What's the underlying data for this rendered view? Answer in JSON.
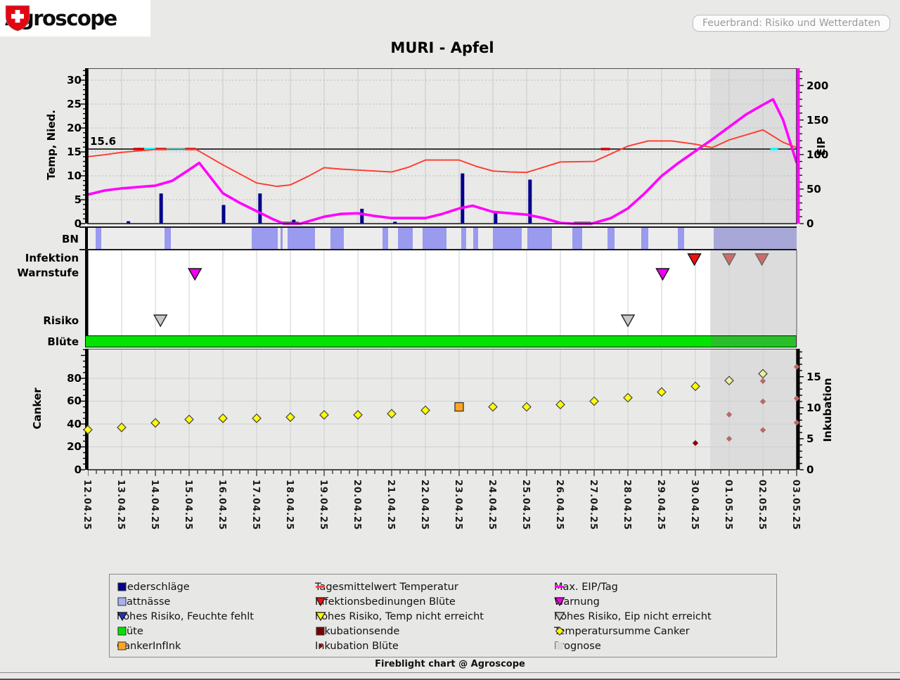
{
  "header": {
    "logo_text": "Agroscope",
    "badge": "Feuerbrand: Risiko und Wetterdaten"
  },
  "title": "MURI - Apfel",
  "footer": "Fireblight chart @ Agroscope",
  "row_labels": {
    "bn": "BN",
    "infektion": "Infektion",
    "warnstufe": "Warnstufe",
    "risiko": "Risiko",
    "bluete": "Blüte"
  },
  "colors": {
    "temperature": "#ff3a2e",
    "eip": "#ff00ff",
    "precipitation": "#00008b",
    "blattnaesse": "#9a9aee",
    "bn_prognose": "#a8a8d8",
    "bluete": "#00e400",
    "canker_point": "#ffff00",
    "forecast_yellow": "#ededA0",
    "canker_infink": "#ffa520",
    "inkubation": "#8b0000",
    "forecast_ink": "#b46a6a",
    "warnung": "#ee00ee",
    "infektion": "#ee1111",
    "forecast_red": "#d06a6a",
    "risiko": "#c8c8c8",
    "prognose": "#dcdcdc",
    "grid": "#c9c9c9",
    "dash_red": "#cc0000",
    "dash_cyan": "#00ffff",
    "zero_green": "#00c000"
  },
  "chart_data": {
    "type": "line",
    "x_dates": [
      "12.04.25",
      "13.04.25",
      "14.04.25",
      "15.04.25",
      "16.04.25",
      "17.04.25",
      "18.04.25",
      "19.04.25",
      "20.04.25",
      "21.04.25",
      "22.04.25",
      "23.04.25",
      "24.04.25",
      "25.04.25",
      "26.04.25",
      "27.04.25",
      "28.04.25",
      "29.04.25",
      "30.04.25",
      "01.05.25",
      "02.05.25",
      "03.05.25"
    ],
    "prognose_start_day": 18.44,
    "top": {
      "ylabel_left": "Temp, Nied.",
      "yticks_left": [
        0,
        5,
        10,
        15,
        20,
        25,
        30
      ],
      "ylim_left": [
        0,
        32.5
      ],
      "ylabel_right": "EIP",
      "yticks_right": [
        0,
        50,
        100,
        150,
        200
      ],
      "ylim_right": [
        0,
        225
      ],
      "threshold_temp": 15.6,
      "threshold_eip": 110,
      "series": {
        "temperature": [
          [
            0,
            14.0
          ],
          [
            0.5,
            14.4
          ],
          [
            1,
            14.9
          ],
          [
            1.5,
            15.2
          ],
          [
            2,
            15.5
          ],
          [
            2.2,
            15.55
          ],
          [
            3.2,
            15.55
          ],
          [
            4,
            12.3
          ],
          [
            5,
            8.5
          ],
          [
            5.6,
            7.8
          ],
          [
            6,
            8.1
          ],
          [
            6.5,
            9.8
          ],
          [
            7,
            11.7
          ],
          [
            7.5,
            11.4
          ],
          [
            8,
            11.2
          ],
          [
            8.5,
            11.0
          ],
          [
            9,
            10.8
          ],
          [
            9.5,
            11.8
          ],
          [
            10,
            13.3
          ],
          [
            11,
            13.3
          ],
          [
            11.5,
            12.0
          ],
          [
            12,
            11.0
          ],
          [
            12.5,
            10.8
          ],
          [
            13,
            10.7
          ],
          [
            13.5,
            11.8
          ],
          [
            14,
            12.9
          ],
          [
            15,
            13.0
          ],
          [
            16,
            16.2
          ],
          [
            16.6,
            17.3
          ],
          [
            17.3,
            17.3
          ],
          [
            18,
            16.6
          ],
          [
            18.5,
            15.9
          ],
          [
            19,
            17.5
          ],
          [
            20,
            19.6
          ],
          [
            20.6,
            17.0
          ],
          [
            21,
            15.9
          ]
        ],
        "max_eip": [
          [
            0,
            42
          ],
          [
            0.5,
            48
          ],
          [
            1,
            51
          ],
          [
            1.5,
            53
          ],
          [
            2,
            55
          ],
          [
            2.5,
            62
          ],
          [
            3,
            78
          ],
          [
            3.3,
            88
          ],
          [
            4,
            44
          ],
          [
            4.5,
            30
          ],
          [
            5,
            18
          ],
          [
            5.5,
            6
          ],
          [
            5.8,
            0
          ],
          [
            6.3,
            0
          ],
          [
            7,
            10
          ],
          [
            7.5,
            14
          ],
          [
            8,
            15
          ],
          [
            8.5,
            11
          ],
          [
            9,
            8
          ],
          [
            10,
            8
          ],
          [
            10.5,
            14
          ],
          [
            11,
            22
          ],
          [
            11.4,
            26
          ],
          [
            12,
            17
          ],
          [
            13,
            13
          ],
          [
            13.5,
            8
          ],
          [
            14,
            1
          ],
          [
            14.4,
            0
          ],
          [
            14.9,
            0
          ],
          [
            15,
            1
          ],
          [
            15.5,
            8
          ],
          [
            16,
            22
          ],
          [
            16.5,
            44
          ],
          [
            17,
            69
          ],
          [
            17.5,
            88
          ],
          [
            18,
            105
          ],
          [
            18.5,
            122
          ],
          [
            19,
            140
          ],
          [
            19.5,
            158
          ],
          [
            20,
            172
          ],
          [
            20.3,
            180
          ],
          [
            20.6,
            150
          ],
          [
            21,
            88
          ]
        ],
        "precipitation": [
          [
            1.2,
            0.5
          ],
          [
            2.17,
            6.3
          ],
          [
            4.02,
            3.9
          ],
          [
            5.1,
            6.3
          ],
          [
            6.1,
            0.8
          ],
          [
            8.12,
            3.1
          ],
          [
            9.1,
            0.4
          ],
          [
            11.1,
            10.5
          ],
          [
            12.08,
            2.2
          ],
          [
            13.1,
            9.2
          ]
        ]
      },
      "zero_eip_segments": [
        [
          5.75,
          6.25
        ],
        [
          14.4,
          14.9
        ]
      ],
      "threshold_dashes": {
        "red": [
          [
            1.35,
            1.67
          ],
          [
            2.0,
            2.33
          ],
          [
            2.88,
            3.2
          ],
          [
            15.2,
            15.47
          ]
        ],
        "cyan": [
          [
            1.67,
            2.0
          ],
          [
            2.33,
            2.88
          ],
          [
            20.22,
            20.45
          ]
        ]
      }
    },
    "blattnaesse_segments": [
      [
        0.23,
        0.4
      ],
      [
        2.28,
        2.46
      ],
      [
        4.86,
        5.62
      ],
      [
        5.7,
        5.78
      ],
      [
        5.91,
        6.74
      ],
      [
        7.18,
        7.58
      ],
      [
        8.73,
        8.89
      ],
      [
        9.19,
        9.62
      ],
      [
        9.92,
        10.63
      ],
      [
        11.06,
        11.21
      ],
      [
        11.42,
        11.57
      ],
      [
        12.0,
        12.86
      ],
      [
        13.01,
        13.74
      ],
      [
        14.36,
        14.65
      ],
      [
        15.39,
        15.6
      ],
      [
        16.39,
        16.6
      ],
      [
        17.47,
        17.66
      ]
    ],
    "blattnaesse_prognose_segment": [
      18.54,
      21.0
    ],
    "markers": {
      "infektion_bluete": [
        {
          "day": 17.97,
          "state": "beobachtet"
        },
        {
          "day": 19.0,
          "state": "prognose"
        },
        {
          "day": 19.97,
          "state": "prognose"
        }
      ],
      "warnung": [
        {
          "day": 3.17
        },
        {
          "day": 17.03
        }
      ],
      "risiko_eip_nicht_erreicht": [
        {
          "day": 2.15
        },
        {
          "day": 16.0
        }
      ]
    },
    "bluete_span_days": [
      0,
      21
    ],
    "bottom": {
      "ylabel_left": "Canker",
      "yticks_left": [
        0,
        20,
        40,
        60,
        80
      ],
      "ylim_left": [
        0,
        105.8
      ],
      "ylabel_right": "Inkubation",
      "yticks_right": [
        0,
        5,
        10,
        15
      ],
      "ylim_right": [
        0,
        19.5
      ],
      "series": {
        "temperatursumme_canker": [
          [
            0,
            35
          ],
          [
            1,
            37
          ],
          [
            2,
            41
          ],
          [
            3,
            44
          ],
          [
            4,
            45
          ],
          [
            5,
            45
          ],
          [
            6,
            46
          ],
          [
            7,
            48
          ],
          [
            8,
            48
          ],
          [
            9,
            49
          ],
          [
            10,
            52
          ],
          [
            12,
            55
          ],
          [
            13,
            55
          ],
          [
            14,
            57
          ],
          [
            15,
            60
          ],
          [
            16,
            63
          ],
          [
            17,
            68
          ],
          [
            18,
            73
          ],
          [
            19,
            78
          ],
          [
            20,
            84
          ]
        ],
        "canker_infink": [
          [
            11,
            55
          ]
        ],
        "inkubation_bluete": [
          [
            18,
            4.3
          ],
          [
            19,
            5.0
          ],
          [
            19,
            8.9
          ],
          [
            20,
            6.4
          ],
          [
            20,
            11.0
          ],
          [
            20,
            14.3
          ],
          [
            21,
            7.6
          ],
          [
            21,
            11.5
          ],
          [
            21,
            16.6
          ]
        ]
      }
    }
  },
  "legend": {
    "columns": [
      [
        {
          "shape": "square",
          "color": "#00008b",
          "label": "Niederschläge"
        },
        {
          "shape": "square",
          "color": "#aab0ee",
          "label": "Blattnässe"
        },
        {
          "shape": "triangle",
          "color": "#2233bb",
          "label": "hohes Risiko, Feuchte fehlt"
        },
        {
          "shape": "square",
          "color": "#00e400",
          "label": "Blüte"
        },
        {
          "shape": "square",
          "color": "#ffa520",
          "label": "CankerInfInk"
        }
      ],
      [
        {
          "shape": "dash",
          "color": "#ff4444",
          "label": "Tagesmittelwert Temperatur"
        },
        {
          "shape": "triangle",
          "color": "#ee1111",
          "label": "Infektionsbedinungen Blüte"
        },
        {
          "shape": "triangle",
          "color": "#ffff00",
          "label": "hohes Risiko, Temp nicht erreicht"
        },
        {
          "shape": "square",
          "color": "#7a0000",
          "label": "Inkubationsende"
        },
        {
          "shape": "diamond-small",
          "color": "#8b0000",
          "label": "Inkubation Blüte"
        }
      ],
      [
        {
          "shape": "dash",
          "color": "#ff00ff",
          "label": "Max. EIP/Tag"
        },
        {
          "shape": "triangle",
          "color": "#ee00ee",
          "label": "Warnung"
        },
        {
          "shape": "triangle",
          "color": "#cccccc",
          "label": "hohes Risiko, Eip nicht erreicht"
        },
        {
          "shape": "diamond",
          "color": "#ffff00",
          "label": "Temperatursumme Canker"
        },
        {
          "shape": "square",
          "color": "#d9d9d9",
          "label": "Prognose",
          "borderless": true
        }
      ]
    ]
  }
}
